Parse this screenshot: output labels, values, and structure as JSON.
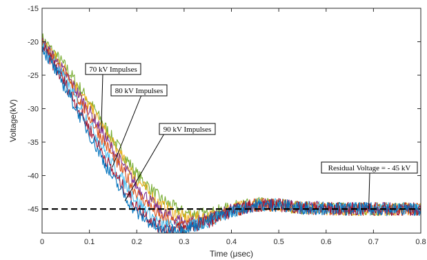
{
  "chart_data": {
    "type": "line",
    "title": "",
    "xlabel": "Time (μsec)",
    "ylabel": "Voltage(kV)",
    "xlim": [
      0,
      0.8
    ],
    "ylim": [
      -48.6,
      -15
    ],
    "xticks": [
      0,
      0.1,
      0.2,
      0.3,
      0.4,
      0.5,
      0.6,
      0.7,
      0.8
    ],
    "yticks": [
      -15,
      -20,
      -25,
      -30,
      -35,
      -40,
      -45
    ],
    "xtick_labels": [
      "0",
      "0.1",
      "0.2",
      "0.3",
      "0.4",
      "0.5",
      "0.6",
      "0.7",
      "0.8"
    ],
    "ytick_labels": [
      "-15",
      "-20",
      "-25",
      "-30",
      "-35",
      "-40",
      "-45"
    ],
    "grid": false,
    "noise_amplitude_kV": 1.0,
    "series": [
      {
        "color": "#77ac30",
        "x": [
          0,
          0.05,
          0.1,
          0.15,
          0.2,
          0.25,
          0.3,
          0.35,
          0.4,
          0.45,
          0.5,
          0.55,
          0.6,
          0.65,
          0.7,
          0.75,
          0.8
        ],
        "y": [
          -19.5,
          -23.8,
          -29.0,
          -34.6,
          -39.8,
          -43.5,
          -45.6,
          -45.8,
          -44.8,
          -44.2,
          -44.4,
          -44.8,
          -44.9,
          -45.0,
          -45.0,
          -45.0,
          -45.0
        ]
      },
      {
        "color": "#edb120",
        "x": [
          0,
          0.05,
          0.1,
          0.15,
          0.2,
          0.25,
          0.3,
          0.35,
          0.4,
          0.45,
          0.5,
          0.55,
          0.6,
          0.65,
          0.7,
          0.75,
          0.8
        ],
        "y": [
          -19.8,
          -24.3,
          -29.6,
          -35.3,
          -40.6,
          -44.4,
          -46.3,
          -46.2,
          -45.0,
          -44.3,
          -44.4,
          -44.8,
          -44.9,
          -45.0,
          -45.0,
          -45.0,
          -45.0
        ]
      },
      {
        "color": "#7e2f8e",
        "x": [
          0,
          0.05,
          0.1,
          0.15,
          0.2,
          0.25,
          0.3,
          0.35,
          0.4,
          0.45,
          0.5,
          0.55,
          0.6,
          0.65,
          0.7,
          0.75,
          0.8
        ],
        "y": [
          -20.0,
          -24.8,
          -30.4,
          -36.2,
          -41.6,
          -45.4,
          -47.0,
          -46.6,
          -45.2,
          -44.4,
          -44.4,
          -44.8,
          -44.9,
          -45.0,
          -45.0,
          -45.0,
          -45.0
        ]
      },
      {
        "color": "#d95319",
        "x": [
          0,
          0.05,
          0.1,
          0.15,
          0.2,
          0.25,
          0.3,
          0.35,
          0.4,
          0.45,
          0.5,
          0.55,
          0.6,
          0.65,
          0.7,
          0.75,
          0.8
        ],
        "y": [
          -20.2,
          -25.3,
          -31.2,
          -37.2,
          -42.6,
          -46.3,
          -47.5,
          -46.8,
          -45.3,
          -44.4,
          -44.4,
          -44.8,
          -44.9,
          -45.0,
          -45.0,
          -45.0,
          -45.0
        ]
      },
      {
        "color": "#4dbeee",
        "x": [
          0,
          0.05,
          0.1,
          0.15,
          0.2,
          0.25,
          0.3,
          0.35,
          0.4,
          0.45,
          0.5,
          0.55,
          0.6,
          0.65,
          0.7,
          0.75,
          0.8
        ],
        "y": [
          -20.4,
          -25.9,
          -32.2,
          -38.5,
          -43.8,
          -47.3,
          -47.9,
          -46.9,
          -45.3,
          -44.4,
          -44.4,
          -44.8,
          -44.9,
          -45.0,
          -45.0,
          -45.0,
          -45.0
        ]
      },
      {
        "color": "#a2142f",
        "x": [
          0,
          0.05,
          0.1,
          0.15,
          0.2,
          0.25,
          0.3,
          0.35,
          0.4,
          0.45,
          0.5,
          0.55,
          0.6,
          0.65,
          0.7,
          0.75,
          0.8
        ],
        "y": [
          -20.6,
          -26.4,
          -33.0,
          -39.5,
          -44.7,
          -47.8,
          -48.0,
          -46.9,
          -45.3,
          -44.4,
          -44.4,
          -44.8,
          -44.9,
          -45.0,
          -45.0,
          -45.0,
          -45.0
        ]
      },
      {
        "color": "#0072bd",
        "x": [
          0,
          0.05,
          0.1,
          0.15,
          0.2,
          0.25,
          0.3,
          0.35,
          0.4,
          0.45,
          0.5,
          0.55,
          0.6,
          0.65,
          0.7,
          0.75,
          0.8
        ],
        "y": [
          -20.8,
          -27.0,
          -33.8,
          -40.5,
          -45.6,
          -48.2,
          -48.0,
          -46.8,
          -45.3,
          -44.4,
          -44.4,
          -44.8,
          -44.9,
          -45.0,
          -45.0,
          -45.0,
          -45.0
        ]
      }
    ],
    "reference_line": {
      "y": -45,
      "style": "dashed",
      "color": "#000000"
    },
    "annotations": [
      {
        "text": "70 kV Impulses",
        "arrow_to": [
          0.125,
          -33.0
        ]
      },
      {
        "text": "80 kV Impulses",
        "arrow_to": [
          0.148,
          -38.8
        ]
      },
      {
        "text": "90 kV Impulses",
        "arrow_to": [
          0.175,
          -43.8
        ]
      },
      {
        "text": "Residual Voltage = - 45 kV",
        "arrow_to": [
          0.69,
          -45.0
        ]
      }
    ]
  }
}
